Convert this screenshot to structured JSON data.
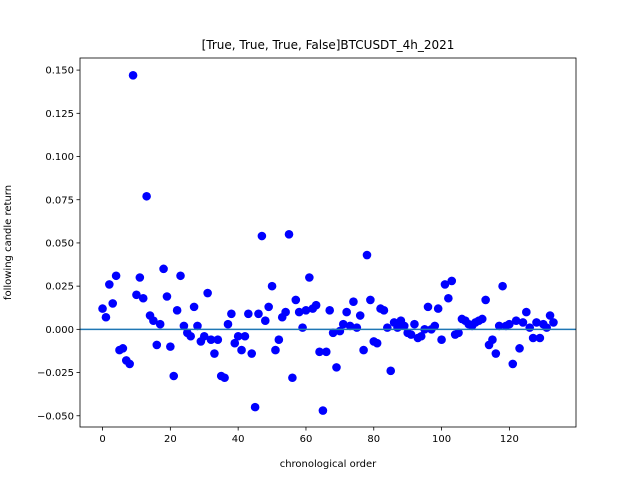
{
  "chart_data": {
    "type": "scatter",
    "title": "[True, True, True, False]BTCUSDT_4h_2021",
    "xlabel": "chronological order",
    "ylabel": "following candle return",
    "xlim": [
      -6.65,
      139.65
    ],
    "ylim": [
      -0.0565,
      0.157
    ],
    "xticks": [
      0,
      20,
      40,
      60,
      80,
      100,
      120
    ],
    "yticks": [
      -0.05,
      -0.025,
      0.0,
      0.025,
      0.05,
      0.075,
      0.1,
      0.125,
      0.15
    ],
    "ytick_labels": [
      "−0.050",
      "−0.025",
      "0.000",
      "0.025",
      "0.050",
      "0.075",
      "0.100",
      "0.125",
      "0.150"
    ],
    "grid": false,
    "marker_color": "#0000ff",
    "reference_line": {
      "y": 0,
      "color": "#1f77b4"
    },
    "points": {
      "x": [
        0,
        1,
        2,
        3,
        4,
        5,
        6,
        7,
        8,
        9,
        10,
        11,
        12,
        13,
        14,
        15,
        16,
        17,
        18,
        19,
        20,
        21,
        22,
        23,
        24,
        25,
        26,
        27,
        28,
        29,
        30,
        31,
        32,
        33,
        34,
        35,
        36,
        37,
        38,
        39,
        40,
        41,
        42,
        43,
        44,
        45,
        46,
        47,
        48,
        49,
        50,
        51,
        52,
        53,
        54,
        55,
        56,
        57,
        58,
        59,
        60,
        61,
        62,
        63,
        64,
        65,
        66,
        67,
        68,
        69,
        70,
        71,
        72,
        73,
        74,
        75,
        76,
        77,
        78,
        79,
        80,
        81,
        82,
        83,
        84,
        85,
        86,
        87,
        88,
        89,
        90,
        91,
        92,
        93,
        94,
        95,
        96,
        97,
        98,
        99,
        100,
        101,
        102,
        103,
        104,
        105,
        106,
        107,
        108,
        109,
        110,
        111,
        112,
        113,
        114,
        115,
        116,
        117,
        118,
        119,
        120,
        121,
        122,
        123,
        124,
        125,
        126,
        127,
        128,
        129,
        130,
        131,
        132,
        133
      ],
      "y": [
        0.012,
        0.007,
        0.026,
        0.015,
        0.031,
        -0.012,
        -0.011,
        -0.018,
        -0.02,
        0.147,
        0.02,
        0.03,
        0.018,
        0.077,
        0.008,
        0.005,
        -0.009,
        0.003,
        0.035,
        0.019,
        -0.01,
        -0.027,
        0.011,
        0.031,
        0.002,
        -0.002,
        -0.004,
        0.013,
        0.002,
        -0.007,
        -0.004,
        0.021,
        -0.006,
        -0.014,
        -0.006,
        -0.027,
        -0.028,
        0.003,
        0.009,
        -0.008,
        -0.004,
        -0.012,
        -0.004,
        0.009,
        -0.014,
        -0.045,
        0.009,
        0.054,
        0.005,
        0.013,
        0.025,
        -0.012,
        -0.006,
        0.007,
        0.01,
        0.055,
        -0.028,
        0.017,
        0.01,
        0.001,
        0.011,
        0.03,
        0.012,
        0.014,
        -0.013,
        -0.047,
        -0.013,
        0.011,
        -0.002,
        -0.022,
        -0.001,
        0.003,
        0.01,
        0.002,
        0.016,
        0.001,
        0.008,
        -0.012,
        0.043,
        0.017,
        -0.007,
        -0.008,
        0.012,
        0.011,
        0.001,
        -0.024,
        0.004,
        0.001,
        0.005,
        0.002,
        -0.002,
        -0.003,
        0.003,
        -0.005,
        -0.004,
        0.0,
        0.013,
        0.0,
        0.002,
        0.012,
        -0.006,
        0.026,
        0.018,
        0.028,
        -0.003,
        -0.002,
        0.006,
        0.005,
        0.003,
        0.002,
        0.004,
        0.005,
        0.006,
        0.017,
        -0.009,
        -0.006,
        -0.014,
        0.002,
        0.025,
        0.002,
        0.003,
        -0.02,
        0.005,
        -0.011,
        0.004,
        0.01,
        0.001,
        -0.005,
        0.004,
        -0.005,
        0.003,
        0.001,
        0.008,
        0.004
      ]
    }
  }
}
